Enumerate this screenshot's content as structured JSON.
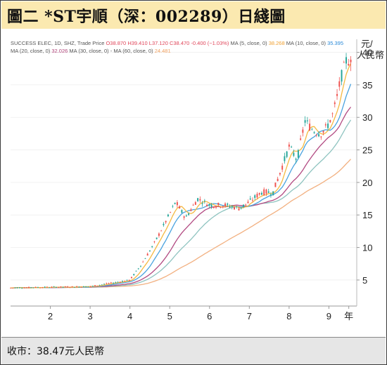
{
  "header": {
    "title": "圖二  *ST宇順（深：002289）日綫圖"
  },
  "footer": {
    "price_label": "收市：38.47元人民幣"
  },
  "legend": {
    "line1": [
      {
        "text": "SUCCESS ELEC, 1D, SHZ, Trade Price",
        "color": "#555555"
      },
      {
        "text": "O38.870",
        "color": "#e0465a"
      },
      {
        "text": "H39.410",
        "color": "#e0465a"
      },
      {
        "text": "L37.120",
        "color": "#e0465a"
      },
      {
        "text": "C38.470",
        "color": "#e0465a"
      },
      {
        "text": "-0.400 (−1.03%)",
        "color": "#e0465a"
      },
      {
        "text": "MA (5, close, 0)",
        "color": "#555555"
      },
      {
        "text": "38.268",
        "color": "#f0a030"
      },
      {
        "text": "MA (10, close, 0)",
        "color": "#555555"
      },
      {
        "text": "35.395",
        "color": "#2a8ad8"
      }
    ],
    "line2": [
      {
        "text": "MA (20, close, 0)",
        "color": "#555555"
      },
      {
        "text": "32.026",
        "color": "#b0457a"
      },
      {
        "text": "MA (30, close, 0)",
        "color": "#555555"
      },
      {
        "text": "-",
        "color": "#555555"
      },
      {
        "text": "MA (60, close, 0)",
        "color": "#555555"
      },
      {
        "text": "24.481",
        "color": "#f0a060"
      }
    ]
  },
  "chart_data": {
    "type": "candlestick",
    "yunit": "元/\n人民幣",
    "yticks": [
      5,
      10,
      15,
      20,
      25,
      30,
      35,
      40
    ],
    "ylim": [
      1,
      42
    ],
    "xticks": [
      {
        "label": "2",
        "x": 1
      },
      {
        "label": "3",
        "x": 2
      },
      {
        "label": "4",
        "x": 3
      },
      {
        "label": "5",
        "x": 4
      },
      {
        "label": "6",
        "x": 5
      },
      {
        "label": "7",
        "x": 6
      },
      {
        "label": "8",
        "x": 7
      },
      {
        "label": "9",
        "x": 8
      },
      {
        "label": "年",
        "x": 8.5
      }
    ],
    "xlim": [
      0.0,
      8.7
    ],
    "colors": {
      "up": "#26a69a",
      "down": "#ef5350",
      "ma5": "#f5b942",
      "ma10": "#4aa3df",
      "ma20": "#b24a82",
      "ma30": "#8fc4c0",
      "ma60": "#f2b080"
    },
    "close_key_points": [
      [
        0.0,
        3.8
      ],
      [
        1.0,
        3.9
      ],
      [
        2.0,
        4.0
      ],
      [
        2.5,
        4.5
      ],
      [
        3.0,
        5.0
      ],
      [
        3.3,
        7.5
      ],
      [
        3.6,
        10.5
      ],
      [
        3.9,
        14.0
      ],
      [
        4.15,
        17.0
      ],
      [
        4.4,
        14.5
      ],
      [
        4.7,
        17.5
      ],
      [
        5.0,
        16.5
      ],
      [
        5.4,
        16.5
      ],
      [
        5.75,
        16.0
      ],
      [
        6.0,
        17.0
      ],
      [
        6.3,
        18.5
      ],
      [
        6.6,
        18.5
      ],
      [
        6.8,
        22.0
      ],
      [
        7.0,
        25.5
      ],
      [
        7.2,
        23.5
      ],
      [
        7.4,
        29.5
      ],
      [
        7.6,
        28.0
      ],
      [
        7.8,
        27.5
      ],
      [
        7.95,
        28.5
      ],
      [
        8.1,
        30.5
      ],
      [
        8.2,
        33.0
      ],
      [
        8.3,
        36.0
      ],
      [
        8.45,
        39.0
      ],
      [
        8.55,
        38.47
      ]
    ],
    "last_candle": {
      "open": 38.87,
      "high": 39.41,
      "low": 37.12,
      "close": 38.47
    }
  }
}
